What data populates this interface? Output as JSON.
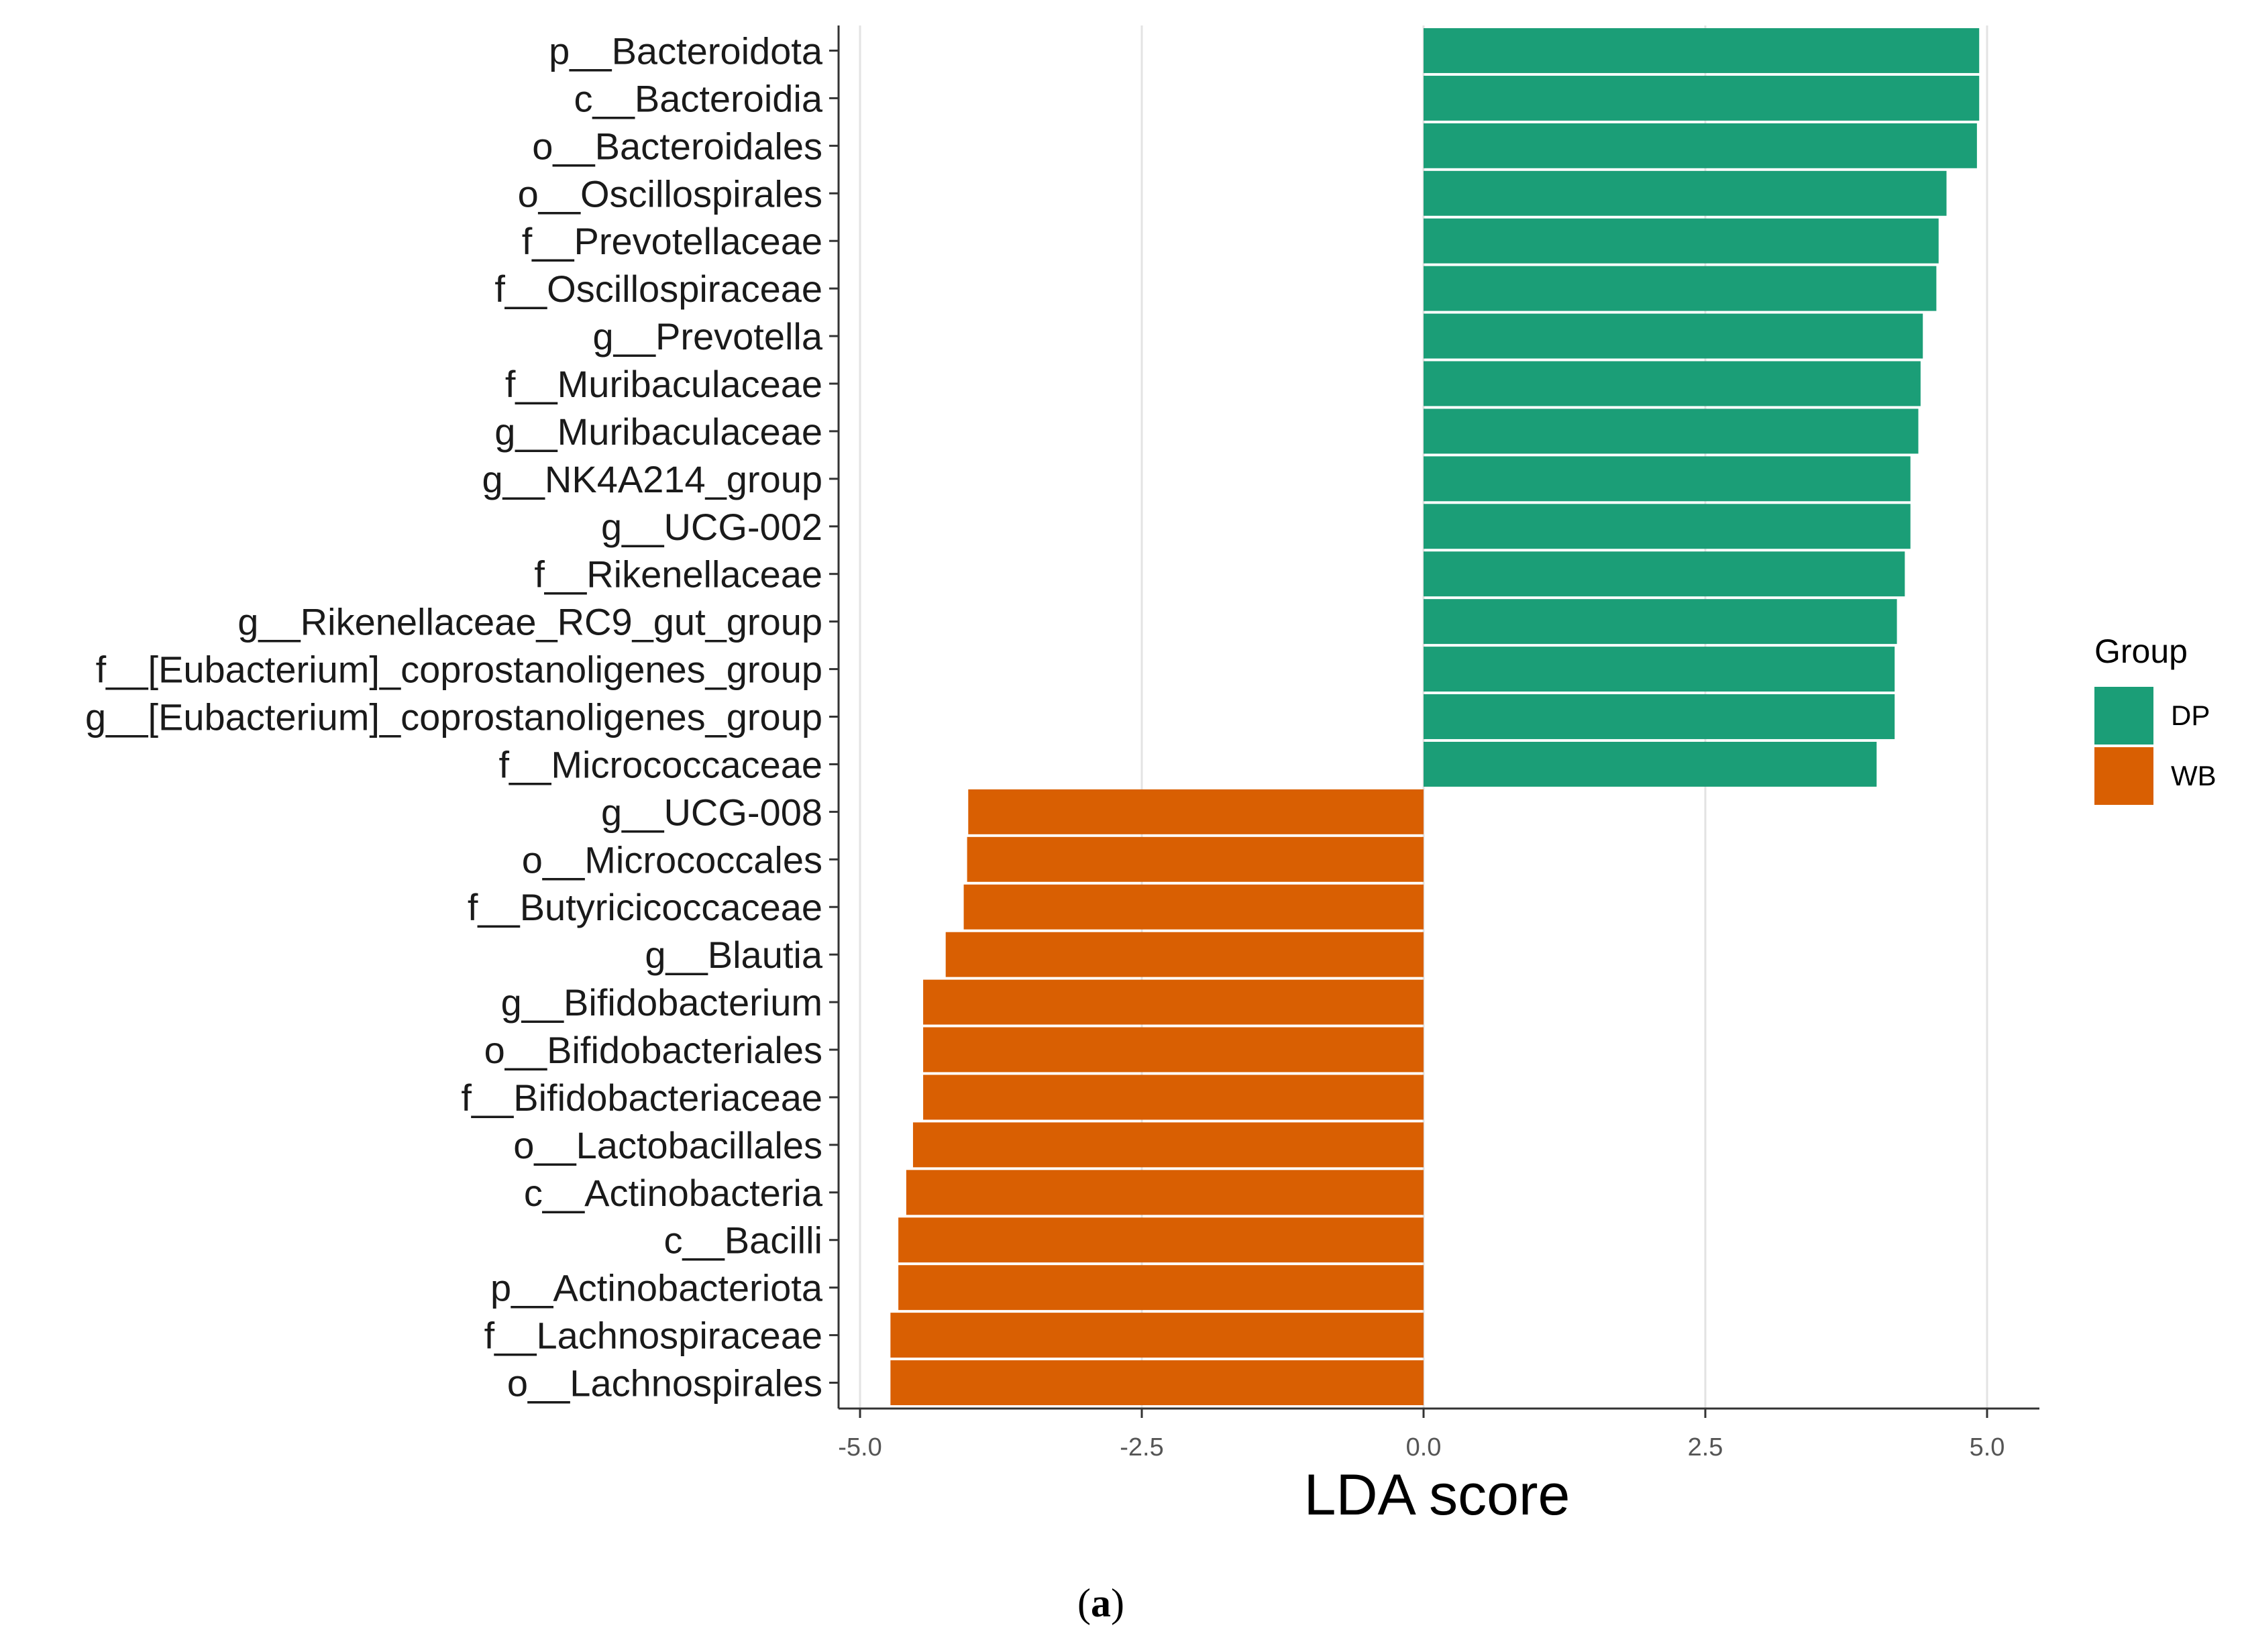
{
  "chart_data": {
    "type": "bar",
    "orientation": "horizontal",
    "xlabel": "LDA score",
    "ylabel": "",
    "xlim": [
      -5.0,
      5.0
    ],
    "xticks": [
      -5.0,
      -2.5,
      0.0,
      2.5,
      5.0
    ],
    "xtick_labels": [
      "-5.0",
      "-2.5",
      "0.0",
      "2.5",
      "5.0"
    ],
    "grid": "vertical major lines",
    "legend": {
      "title": "Group",
      "placement": "right",
      "entries": [
        {
          "name": "DP",
          "color": "#1b9e77"
        },
        {
          "name": "WB",
          "color": "#d95f02"
        }
      ]
    },
    "bars": [
      {
        "label": "p__Bacteroidota",
        "value": 4.93,
        "group": "DP"
      },
      {
        "label": "c__Bacteroidia",
        "value": 4.93,
        "group": "DP"
      },
      {
        "label": "o__Bacteroidales",
        "value": 4.91,
        "group": "DP"
      },
      {
        "label": "o__Oscillospirales",
        "value": 4.64,
        "group": "DP"
      },
      {
        "label": "f__Prevotellaceae",
        "value": 4.57,
        "group": "DP"
      },
      {
        "label": "f__Oscillospiraceae",
        "value": 4.55,
        "group": "DP"
      },
      {
        "label": "g__Prevotella",
        "value": 4.43,
        "group": "DP"
      },
      {
        "label": "f__Muribaculaceae",
        "value": 4.41,
        "group": "DP"
      },
      {
        "label": "g__Muribaculaceae",
        "value": 4.39,
        "group": "DP"
      },
      {
        "label": "g__NK4A214_group",
        "value": 4.32,
        "group": "DP"
      },
      {
        "label": "g__UCG-002",
        "value": 4.32,
        "group": "DP"
      },
      {
        "label": "f__Rikenellaceae",
        "value": 4.27,
        "group": "DP"
      },
      {
        "label": "g__Rikenellaceae_RC9_gut_group",
        "value": 4.2,
        "group": "DP"
      },
      {
        "label": "f__[Eubacterium]_coprostanoligenes_group",
        "value": 4.18,
        "group": "DP"
      },
      {
        "label": "g__[Eubacterium]_coprostanoligenes_group",
        "value": 4.18,
        "group": "DP"
      },
      {
        "label": "f__Micrococcaceae",
        "value": 4.02,
        "group": "DP"
      },
      {
        "label": "g__UCG-008",
        "value": -4.04,
        "group": "WB"
      },
      {
        "label": "o__Micrococcales",
        "value": -4.05,
        "group": "WB"
      },
      {
        "label": "f__Butyricicoccaceae",
        "value": -4.08,
        "group": "WB"
      },
      {
        "label": "g__Blautia",
        "value": -4.24,
        "group": "WB"
      },
      {
        "label": "g__Bifidobacterium",
        "value": -4.44,
        "group": "WB"
      },
      {
        "label": "o__Bifidobacteriales",
        "value": -4.44,
        "group": "WB"
      },
      {
        "label": "f__Bifidobacteriaceae",
        "value": -4.44,
        "group": "WB"
      },
      {
        "label": "o__Lactobacillales",
        "value": -4.53,
        "group": "WB"
      },
      {
        "label": "c__Actinobacteria",
        "value": -4.59,
        "group": "WB"
      },
      {
        "label": "c__Bacilli",
        "value": -4.66,
        "group": "WB"
      },
      {
        "label": "p__Actinobacteriota",
        "value": -4.66,
        "group": "WB"
      },
      {
        "label": "f__Lachnospiraceae",
        "value": -4.73,
        "group": "WB"
      },
      {
        "label": "o__Lachnospirales",
        "value": -4.73,
        "group": "WB"
      }
    ]
  },
  "caption": {
    "open": "(",
    "letter": "a",
    "close": ")"
  }
}
